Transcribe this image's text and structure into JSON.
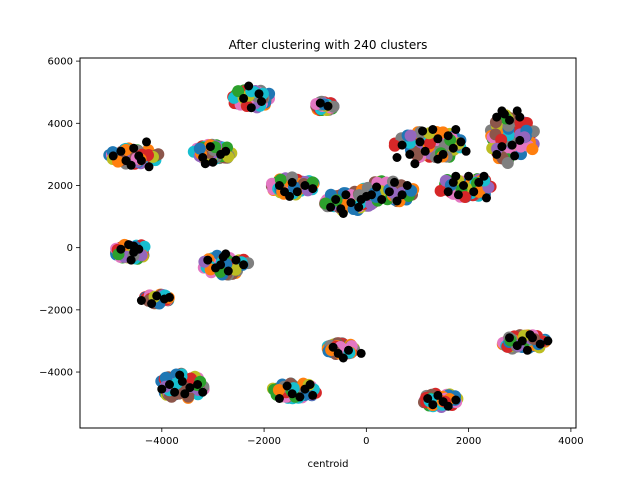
{
  "chart_data": {
    "type": "scatter",
    "title": "After clustering with 240 clusters",
    "xlabel": "centroid",
    "ylabel": "",
    "xlim": [
      -5600,
      4100
    ],
    "ylim": [
      -5800,
      6100
    ],
    "xticks": [
      -4000,
      -2000,
      0,
      2000,
      4000
    ],
    "xtick_labels": [
      "−4000",
      "−2000",
      "0",
      "2000",
      "4000"
    ],
    "yticks": [
      -4000,
      -2000,
      0,
      2000,
      4000,
      6000
    ],
    "ytick_labels": [
      "−4000",
      "−2000",
      "0",
      "2000",
      "4000",
      "6000"
    ],
    "grid": false,
    "legend": "none",
    "palette": [
      "#1f77b4",
      "#ff7f0e",
      "#2ca02c",
      "#d62728",
      "#9467bd",
      "#8c564b",
      "#e377c2",
      "#7f7f7f",
      "#bcbd22",
      "#17becf"
    ],
    "centroid_color": "#000000",
    "groups": [
      {
        "cx": -2250,
        "cy": 4800,
        "rx": 420,
        "ry": 300
      },
      {
        "cx": -820,
        "cy": 4550,
        "rx": 200,
        "ry": 150
      },
      {
        "cx": -4550,
        "cy": 2950,
        "rx": 500,
        "ry": 270
      },
      {
        "cx": -3000,
        "cy": 3050,
        "rx": 380,
        "ry": 270
      },
      {
        "cx": -1450,
        "cy": 1980,
        "rx": 480,
        "ry": 280
      },
      {
        "cx": -350,
        "cy": 1500,
        "rx": 500,
        "ry": 320
      },
      {
        "cx": 400,
        "cy": 1800,
        "rx": 600,
        "ry": 350
      },
      {
        "cx": 1250,
        "cy": 3300,
        "rx": 700,
        "ry": 450
      },
      {
        "cx": 1950,
        "cy": 1950,
        "rx": 550,
        "ry": 330
      },
      {
        "cx": 2850,
        "cy": 3500,
        "rx": 450,
        "ry": 800
      },
      {
        "cx": -4600,
        "cy": -100,
        "rx": 330,
        "ry": 280
      },
      {
        "cx": -2750,
        "cy": -550,
        "rx": 450,
        "ry": 320
      },
      {
        "cx": -4100,
        "cy": -1650,
        "rx": 250,
        "ry": 150
      },
      {
        "cx": -500,
        "cy": -3250,
        "rx": 300,
        "ry": 180
      },
      {
        "cx": -1400,
        "cy": -4600,
        "rx": 450,
        "ry": 250
      },
      {
        "cx": -3600,
        "cy": -4450,
        "rx": 450,
        "ry": 400
      },
      {
        "cx": 1450,
        "cy": -4900,
        "rx": 350,
        "ry": 230
      },
      {
        "cx": 3100,
        "cy": -3050,
        "rx": 450,
        "ry": 250
      }
    ],
    "centroids": [
      [
        -2400,
        4800
      ],
      [
        -2250,
        4500
      ],
      [
        -2100,
        4950
      ],
      [
        -2300,
        5200
      ],
      [
        -2050,
        4700
      ],
      [
        -900,
        4650
      ],
      [
        -750,
        4550
      ],
      [
        -4950,
        2950
      ],
      [
        -4800,
        3100
      ],
      [
        -4700,
        2800
      ],
      [
        -4550,
        3200
      ],
      [
        -4450,
        2950
      ],
      [
        -4300,
        3400
      ],
      [
        -4250,
        2600
      ],
      [
        -4600,
        2650
      ],
      [
        -4400,
        2800
      ],
      [
        -3200,
        2900
      ],
      [
        -3050,
        3250
      ],
      [
        -2850,
        3000
      ],
      [
        -3000,
        2750
      ],
      [
        -2750,
        3100
      ],
      [
        -3150,
        2700
      ],
      [
        -1700,
        2000
      ],
      [
        -1600,
        1800
      ],
      [
        -1450,
        2100
      ],
      [
        -1350,
        1800
      ],
      [
        -1200,
        2000
      ],
      [
        -1050,
        1900
      ],
      [
        -1500,
        1650
      ],
      [
        -700,
        1300
      ],
      [
        -600,
        1550
      ],
      [
        -500,
        1250
      ],
      [
        -400,
        1700
      ],
      [
        -300,
        1450
      ],
      [
        -150,
        1300
      ],
      [
        -100,
        1550
      ],
      [
        0,
        1650
      ],
      [
        -450,
        1100
      ],
      [
        100,
        1700
      ],
      [
        200,
        1950
      ],
      [
        300,
        1550
      ],
      [
        450,
        1800
      ],
      [
        550,
        2100
      ],
      [
        700,
        1700
      ],
      [
        800,
        2000
      ],
      [
        600,
        1500
      ],
      [
        600,
        2900
      ],
      [
        700,
        3300
      ],
      [
        850,
        3000
      ],
      [
        950,
        2700
      ],
      [
        1050,
        3400
      ],
      [
        1150,
        3100
      ],
      [
        1300,
        3800
      ],
      [
        1400,
        3500
      ],
      [
        1500,
        3000
      ],
      [
        1600,
        3600
      ],
      [
        1700,
        3200
      ],
      [
        1750,
        3800
      ],
      [
        1850,
        3400
      ],
      [
        1950,
        3100
      ],
      [
        1100,
        3750
      ],
      [
        1400,
        2850
      ],
      [
        1600,
        1800
      ],
      [
        1700,
        2100
      ],
      [
        1800,
        1700
      ],
      [
        1900,
        2000
      ],
      [
        2000,
        2300
      ],
      [
        2100,
        1800
      ],
      [
        2200,
        2100
      ],
      [
        2300,
        2300
      ],
      [
        2350,
        1600
      ],
      [
        1750,
        2300
      ],
      [
        2550,
        3000
      ],
      [
        2650,
        3250
      ],
      [
        2700,
        4300
      ],
      [
        2800,
        4100
      ],
      [
        2850,
        3300
      ],
      [
        2900,
        2950
      ],
      [
        2950,
        4400
      ],
      [
        3000,
        4200
      ],
      [
        2550,
        4200
      ],
      [
        2650,
        4400
      ],
      [
        3000,
        3450
      ],
      [
        -4800,
        -50
      ],
      [
        -4650,
        100
      ],
      [
        -4550,
        -150
      ],
      [
        -4450,
        -50
      ],
      [
        -4600,
        -400
      ],
      [
        -4550,
        50
      ],
      [
        -3100,
        -400
      ],
      [
        -2950,
        -650
      ],
      [
        -2800,
        -300
      ],
      [
        -2700,
        -750
      ],
      [
        -2550,
        -400
      ],
      [
        -2400,
        -550
      ],
      [
        -2850,
        -550
      ],
      [
        -2750,
        -200
      ],
      [
        -4400,
        -1700
      ],
      [
        -4200,
        -1800
      ],
      [
        -4100,
        -1550
      ],
      [
        -3950,
        -1650
      ],
      [
        -3850,
        -1600
      ],
      [
        -650,
        -3200
      ],
      [
        -550,
        -3400
      ],
      [
        -450,
        -3550
      ],
      [
        -350,
        -3300
      ],
      [
        -100,
        -3400
      ],
      [
        -1700,
        -4850
      ],
      [
        -1550,
        -4450
      ],
      [
        -1450,
        -4700
      ],
      [
        -1300,
        -4800
      ],
      [
        -1200,
        -4550
      ],
      [
        -1100,
        -4400
      ],
      [
        -1050,
        -4750
      ],
      [
        -4000,
        -4550
      ],
      [
        -3850,
        -4400
      ],
      [
        -3750,
        -4650
      ],
      [
        -3600,
        -4300
      ],
      [
        -3550,
        -4700
      ],
      [
        -3450,
        -4500
      ],
      [
        -3300,
        -4400
      ],
      [
        -3200,
        -4650
      ],
      [
        -3650,
        -4100
      ],
      [
        1200,
        -4850
      ],
      [
        1300,
        -5050
      ],
      [
        1400,
        -4750
      ],
      [
        1500,
        -4950
      ],
      [
        1600,
        -5100
      ],
      [
        1750,
        -4900
      ],
      [
        2800,
        -2900
      ],
      [
        2950,
        -3150
      ],
      [
        3050,
        -3000
      ],
      [
        3150,
        -3300
      ],
      [
        3250,
        -2900
      ],
      [
        3400,
        -3100
      ],
      [
        3550,
        -3000
      ],
      [
        3200,
        -2800
      ]
    ]
  }
}
